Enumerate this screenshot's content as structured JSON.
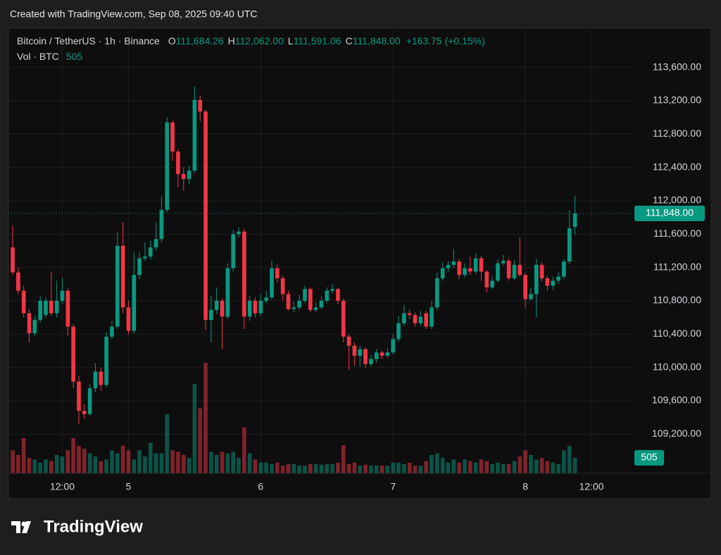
{
  "header": {
    "created": "Created with TradingView.com, Sep 08, 2025 09:40 UTC"
  },
  "chart_data": {
    "type": "candlestick",
    "legend": {
      "symbol": "Bitcoin / TetherUS · 1h · Binance",
      "fields": [
        {
          "key": "O",
          "value": "111,684.26"
        },
        {
          "key": "H",
          "value": "112,062.00"
        },
        {
          "key": "L",
          "value": "111,591.06"
        },
        {
          "key": "C",
          "value": "111,848.00"
        }
      ],
      "change": "+163.75 (+0.15%)",
      "volume_title": "Vol · BTC"
    },
    "up_color": "#089981",
    "down_color": "#f23645",
    "grid": true,
    "open": [
      111440,
      111140,
      110920,
      110650,
      110410,
      110570,
      110630,
      110800,
      110650,
      110800,
      110920,
      110490,
      109830,
      109480,
      109440,
      109750,
      109950,
      109790,
      110370,
      110490,
      111460,
      110720,
      110440,
      111110,
      111310,
      111330,
      111440,
      111540,
      111890,
      112940,
      112590,
      112320,
      112260,
      112360,
      113210,
      113070,
      110570,
      110690,
      110800,
      110610,
      111190,
      111600,
      111630,
      110610,
      110800,
      110650,
      110800,
      110840,
      111190,
      111070,
      110880,
      110700,
      110720,
      110800,
      110940,
      110690,
      110720,
      110800,
      110920,
      110940,
      110800,
      110370,
      110260,
      110140,
      110220,
      110040,
      110100,
      110180,
      110140,
      110180,
      110340,
      110530,
      110650,
      110630,
      110530,
      110650,
      110490,
      110720,
      111070,
      111190,
      111230,
      111270,
      111110,
      111190,
      111150,
      111310,
      111150,
      110960,
      111040,
      111250,
      111280,
      111070,
      111230,
      111110,
      110820,
      110880,
      111230,
      111070,
      110980,
      111040,
      111090,
      111270,
      111684.26
    ],
    "high": [
      111700,
      111200,
      110980,
      110700,
      110620,
      110850,
      110840,
      111150,
      111040,
      111070,
      110950,
      110520,
      109900,
      109560,
      109800,
      110050,
      110000,
      110420,
      110560,
      111620,
      111740,
      110800,
      111380,
      111380,
      111500,
      111520,
      111740,
      112050,
      113000,
      112960,
      112620,
      112400,
      112420,
      113370,
      113260,
      113090,
      110860,
      110960,
      110830,
      111250,
      111650,
      111680,
      111660,
      110860,
      110840,
      110880,
      110920,
      111280,
      111230,
      111100,
      110920,
      110790,
      110870,
      110980,
      110960,
      110780,
      110850,
      110960,
      111000,
      110960,
      110830,
      110400,
      110300,
      110260,
      110240,
      110150,
      110220,
      110200,
      110230,
      110400,
      110620,
      110750,
      110690,
      110660,
      110680,
      110680,
      110800,
      111140,
      111260,
      111280,
      111420,
      111300,
      111250,
      111330,
      111370,
      111340,
      111170,
      111090,
      111300,
      111350,
      111310,
      111290,
      111560,
      111140,
      110960,
      111300,
      111260,
      111100,
      111090,
      111140,
      111300,
      111890,
      112062
    ],
    "low": [
      111110,
      110880,
      110600,
      110300,
      110380,
      110540,
      110600,
      110620,
      110600,
      110760,
      110380,
      109750,
      109320,
      109380,
      109420,
      109700,
      109720,
      109760,
      110340,
      110460,
      110650,
      110400,
      110410,
      111060,
      111280,
      111300,
      111400,
      111500,
      111860,
      112480,
      112160,
      112120,
      112200,
      112330,
      112950,
      110450,
      110300,
      110640,
      110220,
      110580,
      111150,
      111560,
      110460,
      110560,
      110600,
      110620,
      110770,
      110820,
      111020,
      110800,
      110680,
      110660,
      110690,
      110770,
      110660,
      110660,
      110700,
      110770,
      110890,
      110760,
      110300,
      109970,
      110020,
      110010,
      109990,
      110010,
      110060,
      110100,
      110110,
      110150,
      110310,
      110500,
      110580,
      110490,
      110500,
      110460,
      110460,
      110690,
      111040,
      111140,
      111190,
      111060,
      111080,
      111110,
      111120,
      111040,
      110900,
      110940,
      111020,
      111220,
      111040,
      111050,
      111090,
      110720,
      110800,
      110600,
      111030,
      110920,
      110930,
      111000,
      111060,
      111240,
      111591.06
    ],
    "close": [
      111140,
      110920,
      110650,
      110410,
      110570,
      110800,
      110800,
      110650,
      110800,
      110920,
      110490,
      109830,
      109480,
      109440,
      109750,
      109950,
      109790,
      110370,
      110490,
      111460,
      110720,
      110440,
      111110,
      111310,
      111330,
      111440,
      111540,
      111890,
      112940,
      112590,
      112320,
      112260,
      112360,
      113210,
      113070,
      110570,
      110690,
      110800,
      110610,
      111190,
      111600,
      111630,
      110610,
      110800,
      110650,
      110800,
      110840,
      111190,
      111070,
      110880,
      110700,
      110720,
      110800,
      110940,
      110690,
      110720,
      110800,
      110920,
      110940,
      110800,
      110370,
      110260,
      110140,
      110220,
      110040,
      110100,
      110180,
      110140,
      110180,
      110340,
      110530,
      110650,
      110630,
      110530,
      110610,
      110490,
      110720,
      111070,
      111190,
      111230,
      111270,
      111110,
      111190,
      111150,
      111310,
      111150,
      110960,
      111040,
      111250,
      111280,
      111070,
      111230,
      111110,
      110820,
      110880,
      111230,
      111070,
      110980,
      111040,
      111090,
      111270,
      111670,
      111848
    ],
    "volume": [
      750,
      600,
      1150,
      500,
      450,
      350,
      450,
      400,
      600,
      550,
      750,
      1150,
      900,
      800,
      650,
      550,
      400,
      450,
      750,
      650,
      900,
      750,
      450,
      750,
      550,
      1000,
      650,
      650,
      1930,
      750,
      700,
      600,
      500,
      2920,
      2120,
      3610,
      700,
      600,
      700,
      650,
      700,
      500,
      1500,
      650,
      450,
      350,
      350,
      300,
      350,
      250,
      300,
      300,
      250,
      250,
      300,
      300,
      280,
      300,
      300,
      350,
      920,
      300,
      350,
      250,
      280,
      250,
      250,
      250,
      250,
      350,
      350,
      300,
      350,
      250,
      250,
      400,
      600,
      650,
      500,
      350,
      450,
      350,
      450,
      400,
      350,
      450,
      400,
      300,
      350,
      300,
      300,
      400,
      550,
      750,
      600,
      450,
      500,
      400,
      350,
      300,
      750,
      900,
      505
    ],
    "price_line": {
      "value": 111848,
      "label": "111,848.00"
    },
    "ylim": [
      108730,
      114070
    ],
    "yticks": [
      {
        "value": 109200,
        "label": "109,200.00"
      },
      {
        "value": 109600,
        "label": "109,600.00"
      },
      {
        "value": 110000,
        "label": "110,000.00"
      },
      {
        "value": 110400,
        "label": "110,400.00"
      },
      {
        "value": 110800,
        "label": "110,800.00"
      },
      {
        "value": 111200,
        "label": "111,200.00"
      },
      {
        "value": 111600,
        "label": "111,600.00"
      },
      {
        "value": 112000,
        "label": "112,000.00"
      },
      {
        "value": 112400,
        "label": "112,400.00"
      },
      {
        "value": 112800,
        "label": "112,800.00"
      },
      {
        "value": 113200,
        "label": "113,200.00"
      },
      {
        "value": 113600,
        "label": "113,600.00"
      }
    ],
    "xlim": [
      -0.77,
      112.4
    ],
    "xticks": [
      {
        "value": 9,
        "label": "12:00"
      },
      {
        "value": 21,
        "label": "5"
      },
      {
        "value": 45,
        "label": "6"
      },
      {
        "value": 69,
        "label": "7"
      },
      {
        "value": 93,
        "label": "8"
      },
      {
        "value": 105,
        "label": "12:00"
      }
    ]
  },
  "footer": {
    "brand": "TradingView"
  }
}
